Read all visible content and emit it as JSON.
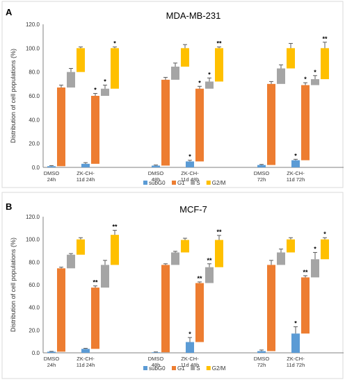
{
  "chart_data": [
    {
      "type": "bar",
      "stacked": true,
      "panel_label": "A",
      "title": "MDA-MB-231",
      "ylabel": "Distribution of cell populations (%)",
      "ylim": [
        0,
        120
      ],
      "yticks": [
        "0.0",
        "20.0",
        "40.0",
        "60.0",
        "80.0",
        "100.0",
        "120.0"
      ],
      "grid": false,
      "legend_position": "bottom",
      "categories": [
        [
          "DMSO",
          "24h"
        ],
        [
          "ZK-CH-",
          "11d 24h"
        ],
        [
          "DMSO",
          "48h"
        ],
        [
          "ZK-CH-",
          "11d 48h"
        ],
        [
          "DMSO",
          "72h"
        ],
        [
          "ZK-CH-",
          "11d 72h"
        ]
      ],
      "series": [
        {
          "name": "subG0",
          "color": "#5B9BD5",
          "values": [
            1.0,
            3.0,
            1.5,
            5.0,
            2.0,
            6.0
          ],
          "errors": [
            0.5,
            1.0,
            0.5,
            1.0,
            0.5,
            0.8
          ],
          "sig": [
            "",
            "",
            "",
            "*",
            "",
            "*"
          ]
        },
        {
          "name": "G1",
          "color": "#ED7D31",
          "values": [
            66,
            57,
            72,
            61,
            68,
            63
          ],
          "errors": [
            2.0,
            2.0,
            2.0,
            2.0,
            2.0,
            2.0
          ],
          "sig": [
            "",
            "*",
            "",
            "*",
            "",
            "*"
          ]
        },
        {
          "name": "S",
          "color": "#A5A5A5",
          "values": [
            13,
            6,
            11,
            6,
            13,
            5
          ],
          "errors": [
            3.0,
            3.0,
            3.0,
            3.0,
            3.0,
            3.0
          ],
          "sig": [
            "",
            "*",
            "",
            "*",
            "",
            "*"
          ]
        },
        {
          "name": "G2/M",
          "color": "#FFC000",
          "values": [
            20,
            34,
            15.5,
            28,
            17,
            26
          ],
          "errors": [
            1.0,
            1.0,
            3.0,
            1.0,
            4.0,
            5.0
          ],
          "sig": [
            "",
            "*",
            "",
            "**",
            "",
            "**"
          ]
        }
      ]
    },
    {
      "type": "bar",
      "stacked": true,
      "panel_label": "B",
      "title": "MCF-7",
      "ylabel": "Distribution of cell populations (%)",
      "ylim": [
        0,
        120
      ],
      "yticks": [
        "0.0",
        "20.0",
        "40.0",
        "60.0",
        "80.0",
        "100.0",
        "120.0"
      ],
      "grid": false,
      "legend_position": "bottom",
      "categories": [
        [
          "DMSO",
          "24h"
        ],
        [
          "ZK-CH-",
          "11d 24h"
        ],
        [
          "DMSO",
          "48h"
        ],
        [
          "ZK-CH-",
          "11d 48h"
        ],
        [
          "DMSO",
          "72h"
        ],
        [
          "ZK-CH-",
          "11d 72h"
        ]
      ],
      "series": [
        {
          "name": "subG0",
          "color": "#5B9BD5",
          "values": [
            1.0,
            3.5,
            0.5,
            9.5,
            1.5,
            17.0
          ],
          "errors": [
            0.3,
            0.5,
            0.3,
            4.0,
            1.0,
            6.0
          ],
          "sig": [
            "",
            "",
            "",
            "*",
            "",
            "*"
          ]
        },
        {
          "name": "G1",
          "color": "#ED7D31",
          "values": [
            73.5,
            54,
            77,
            52,
            76,
            49.5
          ],
          "errors": [
            1.0,
            1.5,
            1.0,
            1.0,
            4.0,
            1.5
          ],
          "sig": [
            "",
            "**",
            "",
            "**",
            "",
            "**"
          ]
        },
        {
          "name": "S",
          "color": "#A5A5A5",
          "values": [
            12,
            20,
            11,
            14,
            11,
            16
          ],
          "errors": [
            1.0,
            4.0,
            1.0,
            3.0,
            3.0,
            6.0
          ],
          "sig": [
            "",
            "",
            "",
            "**",
            "",
            "*"
          ]
        },
        {
          "name": "G2/M",
          "color": "#FFC000",
          "values": [
            13.5,
            26.5,
            11,
            24,
            11.5,
            17.5
          ],
          "errors": [
            1.5,
            4.0,
            1.5,
            4.0,
            1.5,
            1.5
          ],
          "sig": [
            "",
            "**",
            "",
            "**",
            "",
            "*"
          ]
        }
      ]
    }
  ]
}
